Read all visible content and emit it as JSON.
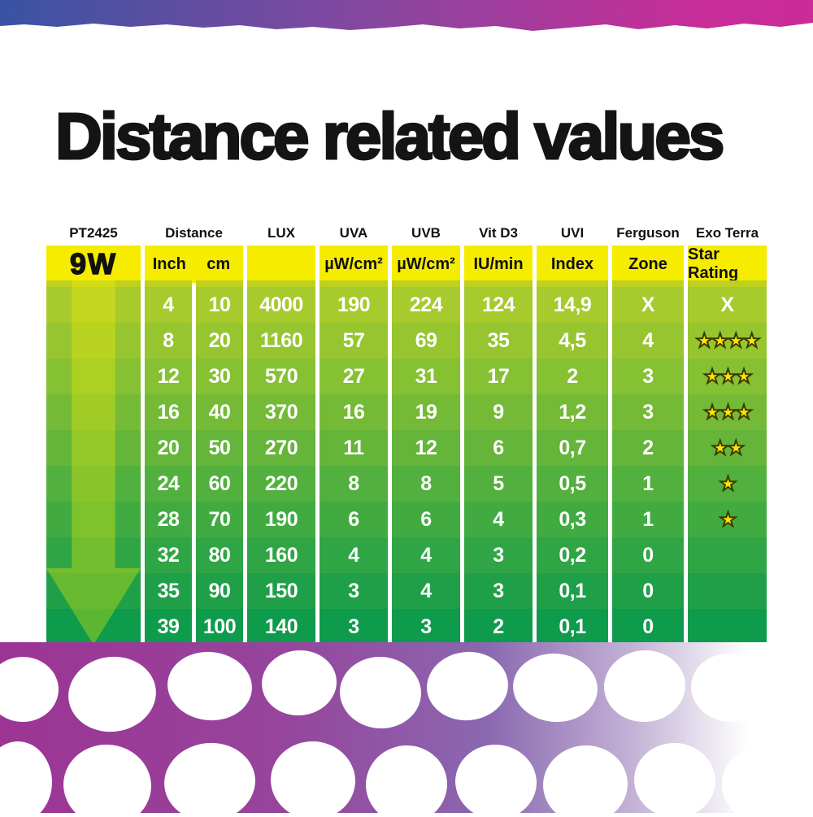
{
  "title": "Distance related values",
  "banner": {
    "gradient": [
      "#3a53a4",
      "#85489f",
      "#c62d98"
    ]
  },
  "colors": {
    "header_yellow": "#f5ec00",
    "transition_strip": "#bdd120",
    "row_greens": [
      "#a7ca2d",
      "#97c530",
      "#86c033",
      "#75ba37",
      "#64b53a",
      "#52b03e",
      "#41ab41",
      "#30a545",
      "#1fa048",
      "#0e9b4b"
    ],
    "arrow_overlay": "rgba(255,242,0,0.32)",
    "star_yellow": "#ffe600",
    "mesh_purple": "#9c3494",
    "title_black": "#141414"
  },
  "chart_data": {
    "type": "table",
    "title": "Distance related values",
    "product_code": "PT2425",
    "wattage": "9W",
    "columns": [
      {
        "group": "Distance",
        "unit": "Inch",
        "key": "inch"
      },
      {
        "group": "Distance",
        "unit": "cm",
        "key": "cm"
      },
      {
        "group": "LUX",
        "unit": "",
        "key": "lux"
      },
      {
        "group": "UVA",
        "unit": "µW/cm²",
        "key": "uva"
      },
      {
        "group": "UVB",
        "unit": "µW/cm²",
        "key": "uvb"
      },
      {
        "group": "Vit D3",
        "unit": "IU/min",
        "key": "vit_d3"
      },
      {
        "group": "UVI",
        "unit": "Index",
        "key": "uvi"
      },
      {
        "group": "Ferguson",
        "unit": "Zone",
        "key": "ferguson"
      },
      {
        "group": "Exo Terra",
        "unit": "Star Rating",
        "key": "star_rating"
      }
    ],
    "rows": [
      {
        "inch": "4",
        "cm": "10",
        "lux": "4000",
        "uva": "190",
        "uvb": "224",
        "vit_d3": "124",
        "uvi": "14,9",
        "ferguson": "X",
        "star_rating": "X"
      },
      {
        "inch": "8",
        "cm": "20",
        "lux": "1160",
        "uva": "57",
        "uvb": "69",
        "vit_d3": "35",
        "uvi": "4,5",
        "ferguson": "4",
        "star_rating": 4
      },
      {
        "inch": "12",
        "cm": "30",
        "lux": "570",
        "uva": "27",
        "uvb": "31",
        "vit_d3": "17",
        "uvi": "2",
        "ferguson": "3",
        "star_rating": 3
      },
      {
        "inch": "16",
        "cm": "40",
        "lux": "370",
        "uva": "16",
        "uvb": "19",
        "vit_d3": "9",
        "uvi": "1,2",
        "ferguson": "3",
        "star_rating": 3
      },
      {
        "inch": "20",
        "cm": "50",
        "lux": "270",
        "uva": "11",
        "uvb": "12",
        "vit_d3": "6",
        "uvi": "0,7",
        "ferguson": "2",
        "star_rating": 2
      },
      {
        "inch": "24",
        "cm": "60",
        "lux": "220",
        "uva": "8",
        "uvb": "8",
        "vit_d3": "5",
        "uvi": "0,5",
        "ferguson": "1",
        "star_rating": 1
      },
      {
        "inch": "28",
        "cm": "70",
        "lux": "190",
        "uva": "6",
        "uvb": "6",
        "vit_d3": "4",
        "uvi": "0,3",
        "ferguson": "1",
        "star_rating": 1
      },
      {
        "inch": "32",
        "cm": "80",
        "lux": "160",
        "uva": "4",
        "uvb": "4",
        "vit_d3": "3",
        "uvi": "0,2",
        "ferguson": "0",
        "star_rating": 0
      },
      {
        "inch": "35",
        "cm": "90",
        "lux": "150",
        "uva": "3",
        "uvb": "4",
        "vit_d3": "3",
        "uvi": "0,1",
        "ferguson": "0",
        "star_rating": 0
      },
      {
        "inch": "39",
        "cm": "100",
        "lux": "140",
        "uva": "3",
        "uvb": "3",
        "vit_d3": "2",
        "uvi": "0,1",
        "ferguson": "0",
        "star_rating": 0
      }
    ]
  }
}
